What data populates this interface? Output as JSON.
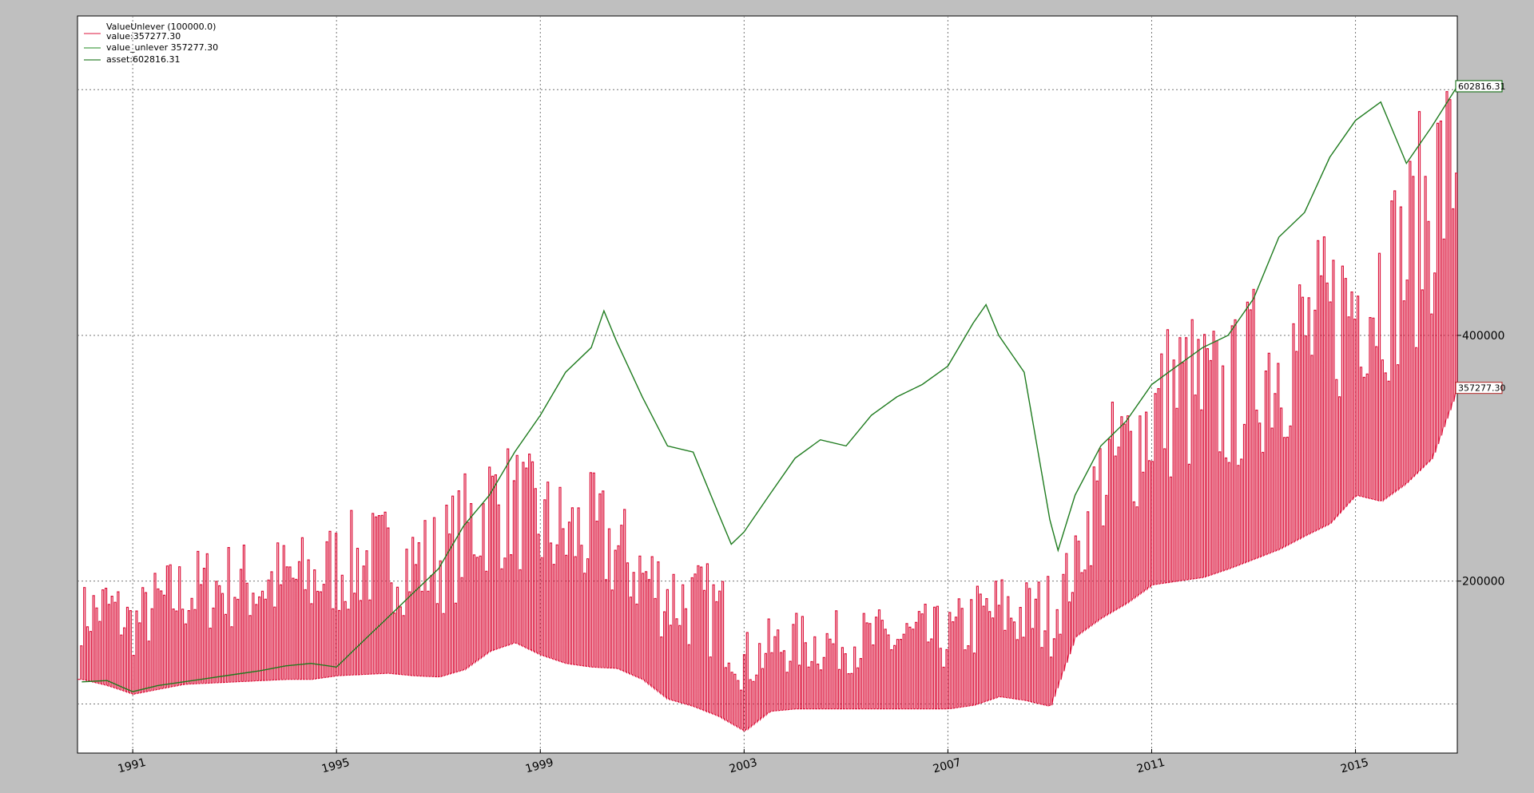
{
  "chart_data": {
    "type": "line",
    "title": "",
    "xlabel": "",
    "ylabel": "",
    "x_range": [
      "1989-12-01",
      "2016-12-31"
    ],
    "ylim": [
      60000,
      660000
    ],
    "y_ticks": [
      {
        "value": 200000,
        "label": "200000"
      },
      {
        "value": 400000,
        "label": "400000"
      }
    ],
    "y_gridlines": [
      100000,
      200000,
      400000,
      600000
    ],
    "x_ticks": [
      {
        "value": "1991-01-01",
        "label": "1991"
      },
      {
        "value": "1995-01-01",
        "label": "1995"
      },
      {
        "value": "1999-01-01",
        "label": "1999"
      },
      {
        "value": "2003-01-01",
        "label": "2003"
      },
      {
        "value": "2007-01-01",
        "label": "2007"
      },
      {
        "value": "2011-01-01",
        "label": "2011"
      },
      {
        "value": "2015-01-01",
        "label": "2015"
      }
    ],
    "grid": true,
    "legend_position": "top-left",
    "legend": {
      "header": "ValueUnlever (100000.0)",
      "entries": [
        {
          "label": "value:357277.30",
          "color": "#dc143c"
        },
        {
          "label": "value_unlever 357277.30",
          "color": "#228b22"
        },
        {
          "label": "asset:602816.31",
          "color": "#006400"
        }
      ]
    },
    "value_tags": [
      {
        "series": "asset",
        "value": 602816.31,
        "label": "602816.31",
        "color": "#006400"
      },
      {
        "series": "value",
        "value": 357277.3,
        "label": "357277.30",
        "color": "#b22222"
      }
    ],
    "series": [
      {
        "name": "value",
        "color": "#dc143c",
        "x": [
          "1990-01-01",
          "1990-07-01",
          "1991-01-01",
          "1991-07-01",
          "1992-01-01",
          "1992-07-01",
          "1993-01-01",
          "1993-07-01",
          "1994-01-01",
          "1994-07-01",
          "1995-01-01",
          "1995-07-01",
          "1996-01-01",
          "1996-07-01",
          "1997-01-01",
          "1997-07-01",
          "1998-01-01",
          "1998-07-01",
          "1999-01-01",
          "1999-07-01",
          "2000-01-01",
          "2000-07-01",
          "2001-01-01",
          "2001-07-01",
          "2002-01-01",
          "2002-07-01",
          "2003-01-01",
          "2003-07-01",
          "2004-01-01",
          "2004-07-01",
          "2005-01-01",
          "2005-07-01",
          "2006-01-01",
          "2006-07-01",
          "2007-01-01",
          "2007-07-01",
          "2008-01-01",
          "2008-07-01",
          "2009-01-01",
          "2009-07-01",
          "2010-01-01",
          "2010-07-01",
          "2011-01-01",
          "2011-07-01",
          "2012-01-01",
          "2012-07-01",
          "2013-01-01",
          "2013-07-01",
          "2014-01-01",
          "2014-07-01",
          "2015-01-01",
          "2015-07-01",
          "2016-01-01",
          "2016-07-01",
          "2016-12-31"
        ],
        "base": [
          120000,
          115000,
          108000,
          112000,
          116000,
          117000,
          118000,
          119000,
          120000,
          120000,
          123000,
          124000,
          125000,
          123000,
          122000,
          128000,
          143000,
          150000,
          140000,
          133000,
          130000,
          129000,
          120000,
          104000,
          98000,
          90000,
          78000,
          94000,
          96000,
          96000,
          96000,
          96000,
          96000,
          96000,
          96000,
          99000,
          106000,
          103000,
          98000,
          155000,
          170000,
          182000,
          197000,
          200000,
          203000,
          210000,
          218000,
          226000,
          237000,
          247000,
          270000,
          265000,
          280000,
          300000,
          357277
        ],
        "high": [
          198000,
          210000,
          190000,
          215000,
          225000,
          232000,
          235000,
          235000,
          240000,
          240000,
          255000,
          260000,
          265000,
          258000,
          262000,
          290000,
          320000,
          315000,
          295000,
          285000,
          290000,
          270000,
          245000,
          230000,
          220000,
          215000,
          160000,
          170000,
          175000,
          175000,
          177000,
          178000,
          180000,
          182000,
          180000,
          200000,
          210000,
          205000,
          210000,
          240000,
          340000,
          365000,
          400000,
          430000,
          420000,
          410000,
          445000,
          455000,
          475000,
          490000,
          510000,
          530000,
          550000,
          620000,
          630000
        ]
      },
      {
        "name": "asset",
        "color": "#1e7b1e",
        "x": [
          "1990-01-01",
          "1990-07-01",
          "1991-01-01",
          "1991-07-01",
          "1992-01-01",
          "1992-07-01",
          "1993-01-01",
          "1993-07-01",
          "1994-01-01",
          "1994-07-01",
          "1995-01-01",
          "1995-07-01",
          "1996-01-01",
          "1996-07-01",
          "1997-01-01",
          "1997-07-01",
          "1998-01-01",
          "1998-07-01",
          "1999-01-01",
          "1999-07-01",
          "2000-01-01",
          "2000-04-01",
          "2000-07-01",
          "2001-01-01",
          "2001-07-01",
          "2002-01-01",
          "2002-07-01",
          "2002-10-01",
          "2003-01-01",
          "2003-07-01",
          "2004-01-01",
          "2004-07-01",
          "2005-01-01",
          "2005-07-01",
          "2006-01-01",
          "2006-07-01",
          "2007-01-01",
          "2007-07-01",
          "2007-10-01",
          "2008-01-01",
          "2008-07-01",
          "2009-01-01",
          "2009-03-01",
          "2009-07-01",
          "2010-01-01",
          "2010-07-01",
          "2011-01-01",
          "2011-07-01",
          "2012-01-01",
          "2012-07-01",
          "2013-01-01",
          "2013-07-01",
          "2014-01-01",
          "2014-07-01",
          "2015-01-01",
          "2015-07-01",
          "2016-01-01",
          "2016-07-01",
          "2016-12-31"
        ],
        "values": [
          118000,
          119000,
          110000,
          115000,
          118000,
          121000,
          124000,
          127000,
          131000,
          133000,
          130000,
          150000,
          170000,
          190000,
          210000,
          245000,
          270000,
          305000,
          335000,
          370000,
          390000,
          420000,
          395000,
          350000,
          310000,
          305000,
          255000,
          230000,
          240000,
          270000,
          300000,
          315000,
          310000,
          335000,
          350000,
          360000,
          375000,
          410000,
          425000,
          400000,
          370000,
          250000,
          225000,
          270000,
          310000,
          330000,
          360000,
          375000,
          390000,
          400000,
          430000,
          480000,
          500000,
          545000,
          575000,
          590000,
          540000,
          570000,
          602816
        ]
      }
    ]
  }
}
